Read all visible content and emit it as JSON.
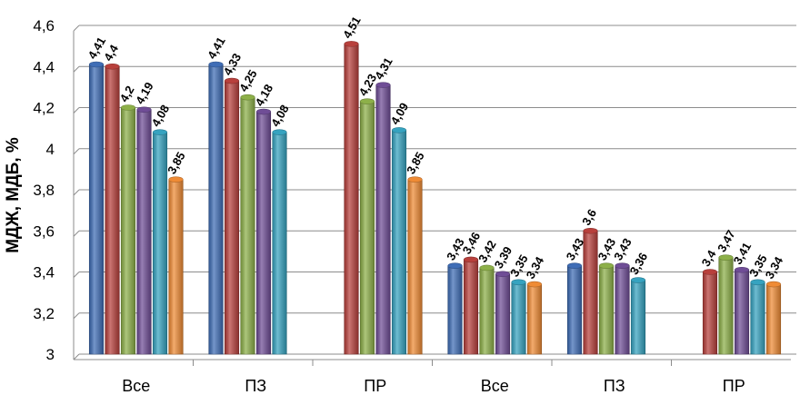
{
  "chart_data": {
    "type": "bar",
    "ylabel": "МДЖ, МДБ, %",
    "ylim": [
      3,
      4.6
    ],
    "ytick_step": 0.2,
    "ytick_labels": [
      "3",
      "3,2",
      "3,4",
      "3,6",
      "3,8",
      "4",
      "4,2",
      "4,4",
      "4,6"
    ],
    "grid": true,
    "legend": "none",
    "categories": [
      "Все",
      "ПЗ",
      "ПР",
      "Все",
      "ПЗ",
      "ПР"
    ],
    "series": [
      {
        "color": "#3f6db6",
        "values": [
          4.41,
          4.41,
          null,
          3.43,
          3.43,
          null
        ],
        "labels": [
          "4,41",
          "4,41",
          "",
          "3,43",
          "3,43",
          ""
        ]
      },
      {
        "color": "#b8403c",
        "values": [
          4.4,
          4.33,
          4.51,
          3.46,
          3.6,
          3.4
        ],
        "labels": [
          "4,4",
          "4,33",
          "4,51",
          "3,46",
          "3,6",
          "3,4"
        ]
      },
      {
        "color": "#8db049",
        "values": [
          4.2,
          4.25,
          4.23,
          3.42,
          3.43,
          3.47
        ],
        "labels": [
          "4,2",
          "4,25",
          "4,23",
          "3,42",
          "3,43",
          "3,47"
        ]
      },
      {
        "color": "#6f4d96",
        "values": [
          4.19,
          4.18,
          4.31,
          3.39,
          3.43,
          3.41
        ],
        "labels": [
          "4,19",
          "4,18",
          "4,31",
          "3,39",
          "3,43",
          "3,41"
        ]
      },
      {
        "color": "#36a3c0",
        "values": [
          4.08,
          4.08,
          4.09,
          3.35,
          3.36,
          3.35
        ],
        "labels": [
          "4,08",
          "4,08",
          "4,09",
          "3,35",
          "3,36",
          "3,35"
        ]
      },
      {
        "color": "#ef8b35",
        "values": [
          3.85,
          null,
          3.85,
          3.34,
          null,
          3.34
        ],
        "labels": [
          "3,85",
          "",
          "3,85",
          "3,34",
          "",
          "3,34"
        ]
      }
    ]
  }
}
